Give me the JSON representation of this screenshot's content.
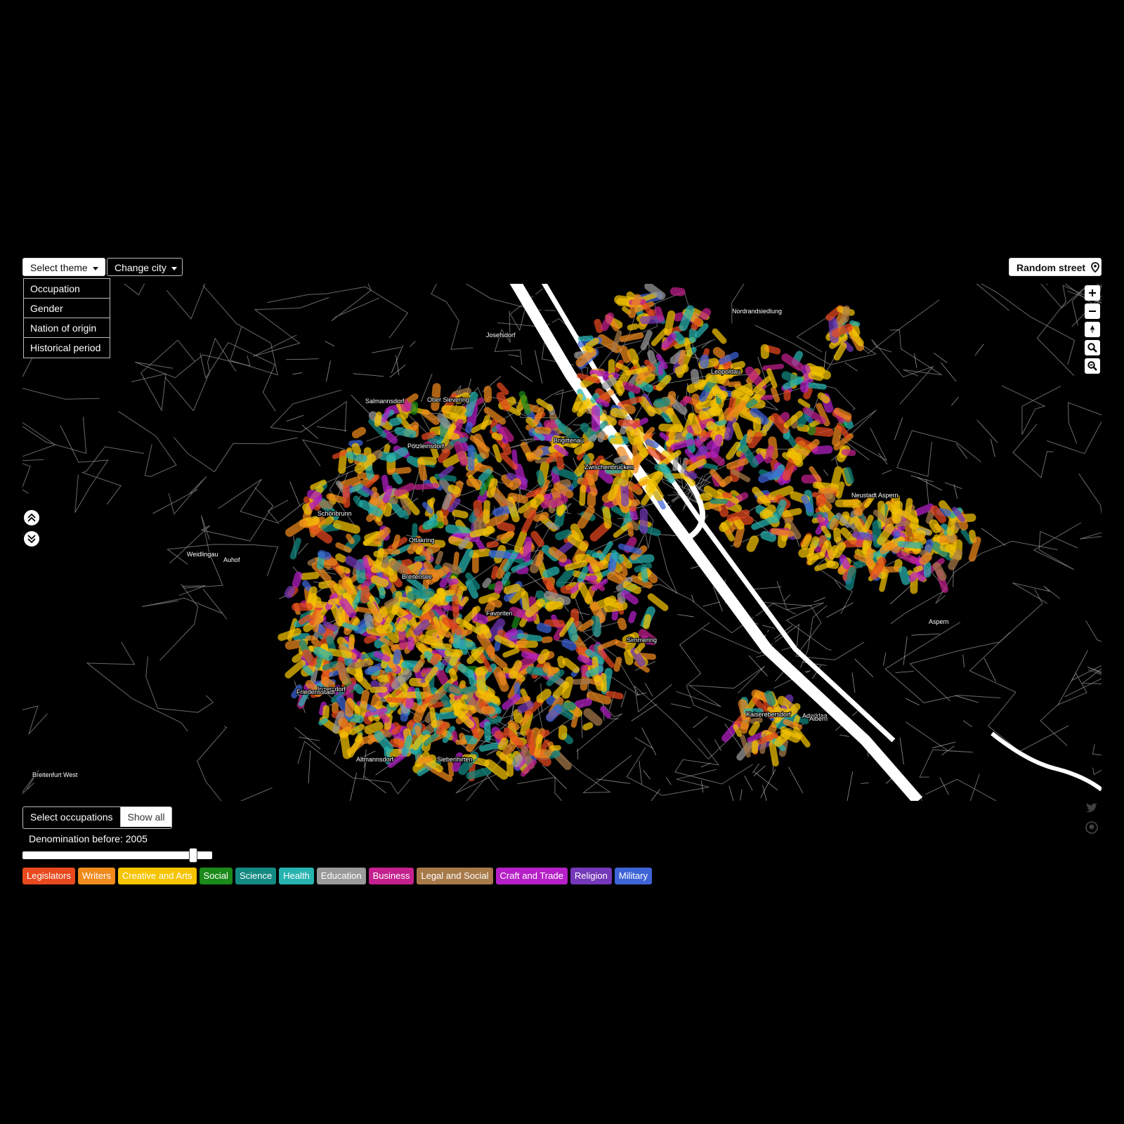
{
  "header": {
    "select_theme": "Select theme",
    "change_city": "Change city",
    "random_street": "Random street"
  },
  "theme_menu": {
    "items": [
      "Occupation",
      "Gender",
      "Nation of origin",
      "Historical period"
    ]
  },
  "map": {
    "labels": [
      "Nordrandsiedlung",
      "Josefsdorf",
      "Salmannsdorf",
      "Ober Sievering",
      "Pötzleinsdorf",
      "Leopoldau",
      "Brigittenau",
      "Zwischenbrücken",
      "Neustadt Aspern",
      "Weidlingau",
      "Auhof",
      "Ottakring",
      "Breitensee",
      "Schönbrunn",
      "Favoriten",
      "Simmering",
      "Aspern",
      "Aderklaa",
      "Kaiserebersdorf",
      "Albern",
      "Altmannsdorf",
      "Siebenhirten",
      "Inzersdorf",
      "Friedensstadt",
      "Breitenfurt West"
    ],
    "controls": [
      "zoom-in",
      "zoom-out",
      "compass",
      "search",
      "reset-view"
    ]
  },
  "bottom": {
    "select_occupations": "Select occupations",
    "show_all": "Show all",
    "denomination_label": "Denomination before: 2005",
    "slider_fraction": 0.92,
    "occupations": [
      {
        "label": "Legislators",
        "color": "#e8491f"
      },
      {
        "label": "Writers",
        "color": "#f08a1c"
      },
      {
        "label": "Creative and Arts",
        "color": "#f5c400"
      },
      {
        "label": "Social",
        "color": "#1a8a1a"
      },
      {
        "label": "Science",
        "color": "#138a82"
      },
      {
        "label": "Health",
        "color": "#27b4b0"
      },
      {
        "label": "Education",
        "color": "#9a9a9a"
      },
      {
        "label": "Business",
        "color": "#c4208e"
      },
      {
        "label": "Legal and Social",
        "color": "#a87a4a"
      },
      {
        "label": "Craft and Trade",
        "color": "#b620c8"
      },
      {
        "label": "Religion",
        "color": "#7438b8"
      },
      {
        "label": "Military",
        "color": "#3e64d8"
      }
    ]
  }
}
